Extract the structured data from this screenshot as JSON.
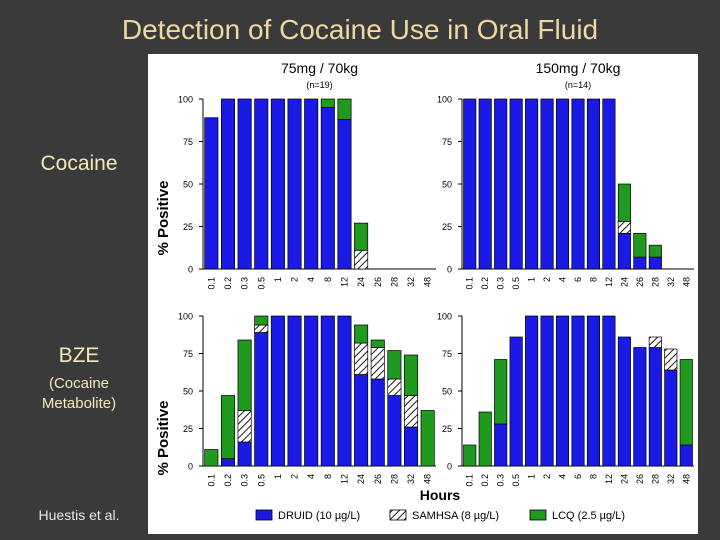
{
  "slide": {
    "title": "Detection of Cocaine Use in Oral Fluid",
    "panel_labels": {
      "cocaine": "Cocaine",
      "bze": "BZE",
      "bze_sub_1": "(Cocaine",
      "bze_sub_2": "Metabolite)"
    },
    "citation": "Huestis et al."
  },
  "figure": {
    "xlabel": "Hours",
    "ylabel": "% Positive",
    "legend": [
      "DRUID (10 µg/L)",
      "SAMHSA (8 µg/L)",
      "LCQ (2.5 µg/L)"
    ],
    "legend_placement": "bottom",
    "colors": {
      "druid": "#1a1ae6",
      "samhsa_hatch": "#000000",
      "lcq": "#1f9a1f",
      "figure_bg": "#ffffff",
      "slide_bg": "#3a3a3a"
    }
  },
  "chart_data": [
    {
      "type": "bar",
      "stacked": true,
      "title": "75mg / 70kg",
      "subtitle": "(n=19)",
      "categories": [
        "0.1",
        "0.2",
        "0.3",
        "0.5",
        "1",
        "2",
        "4",
        "8",
        "12",
        "24",
        "26",
        "28",
        "32",
        "48"
      ],
      "ylim": [
        0,
        100
      ],
      "yticks": [
        0,
        25,
        50,
        75,
        100
      ],
      "series": [
        {
          "values": [
            89,
            100,
            100,
            100,
            100,
            100,
            100,
            95,
            88,
            0,
            0,
            0,
            0,
            0
          ]
        },
        {
          "values": [
            0,
            0,
            0,
            0,
            0,
            0,
            0,
            0,
            0,
            11,
            0,
            0,
            0,
            0
          ]
        },
        {
          "values": [
            0,
            0,
            0,
            0,
            0,
            0,
            0,
            5,
            12,
            16,
            0,
            0,
            0,
            0
          ]
        }
      ]
    },
    {
      "type": "bar",
      "stacked": true,
      "title": "150mg / 70kg",
      "subtitle": "(n=14)",
      "categories": [
        "0.1",
        "0.2",
        "0.3",
        "0.5",
        "1",
        "2",
        "4",
        "6",
        "8",
        "12",
        "24",
        "26",
        "28",
        "32",
        "48"
      ],
      "ylim": [
        0,
        100
      ],
      "yticks": [
        0,
        25,
        50,
        75,
        100
      ],
      "series": [
        {
          "values": [
            100,
            100,
            100,
            100,
            100,
            100,
            100,
            100,
            100,
            100,
            21,
            7,
            7,
            0,
            0
          ]
        },
        {
          "values": [
            0,
            0,
            0,
            0,
            0,
            0,
            0,
            0,
            0,
            0,
            7,
            0,
            0,
            0,
            0
          ]
        },
        {
          "values": [
            0,
            0,
            0,
            0,
            0,
            0,
            0,
            0,
            0,
            0,
            22,
            14,
            7,
            0,
            0
          ]
        }
      ]
    },
    {
      "type": "bar",
      "stacked": true,
      "categories": [
        "0.1",
        "0.2",
        "0.3",
        "0.5",
        "1",
        "2",
        "4",
        "8",
        "12",
        "24",
        "26",
        "28",
        "32",
        "48"
      ],
      "ylim": [
        0,
        100
      ],
      "yticks": [
        0,
        25,
        50,
        75,
        100
      ],
      "series": [
        {
          "values": [
            0,
            5,
            16,
            89,
            100,
            100,
            100,
            100,
            100,
            61,
            58,
            47,
            26,
            0
          ]
        },
        {
          "values": [
            0,
            0,
            21,
            5,
            0,
            0,
            0,
            0,
            0,
            21,
            21,
            11,
            21,
            0
          ]
        },
        {
          "values": [
            11,
            42,
            47,
            6,
            0,
            0,
            0,
            0,
            0,
            12,
            5,
            19,
            27,
            37
          ]
        }
      ]
    },
    {
      "type": "bar",
      "stacked": true,
      "categories": [
        "0.1",
        "0.2",
        "0.3",
        "0.5",
        "1",
        "2",
        "4",
        "6",
        "8",
        "12",
        "24",
        "26",
        "28",
        "32",
        "48"
      ],
      "ylim": [
        0,
        100
      ],
      "yticks": [
        0,
        25,
        50,
        75,
        100
      ],
      "series": [
        {
          "values": [
            0,
            0,
            28,
            86,
            100,
            100,
            100,
            100,
            100,
            100,
            86,
            79,
            79,
            64,
            14
          ]
        },
        {
          "values": [
            0,
            0,
            0,
            0,
            0,
            0,
            0,
            0,
            0,
            0,
            0,
            0,
            7,
            14,
            0
          ]
        },
        {
          "values": [
            14,
            36,
            43,
            0,
            0,
            0,
            0,
            0,
            0,
            0,
            0,
            0,
            0,
            0,
            57
          ]
        }
      ]
    }
  ]
}
